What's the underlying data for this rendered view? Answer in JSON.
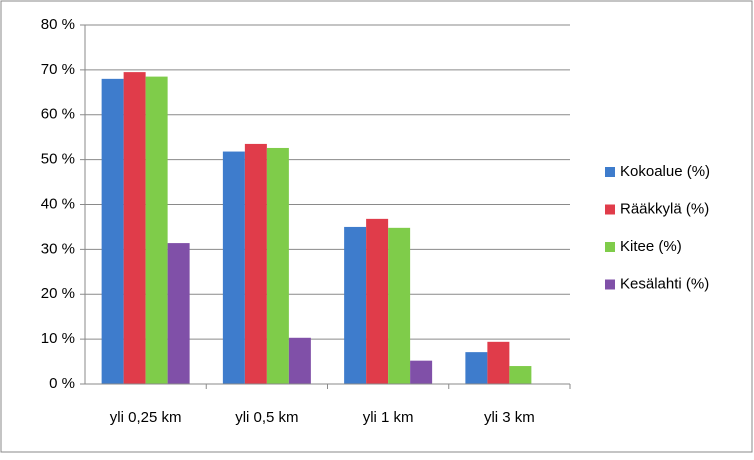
{
  "chart_data": {
    "type": "bar",
    "categories": [
      "yli 0,25 km",
      "yli 0,5 km",
      "yli 1 km",
      "yli 3 km"
    ],
    "series": [
      {
        "name": "Kokoalue (%)",
        "color": "#3e7ccc",
        "values": [
          68,
          51.8,
          35,
          7.1
        ]
      },
      {
        "name": "Rääkkylä (%)",
        "color": "#e03c4a",
        "values": [
          69.5,
          53.5,
          36.8,
          9.4
        ]
      },
      {
        "name": "Kitee (%)",
        "color": "#7fcc4a",
        "values": [
          68.5,
          52.6,
          34.8,
          4
        ]
      },
      {
        "name": "Kesälahti (%)",
        "color": "#8050a8",
        "values": [
          31.4,
          10.3,
          5.2,
          0
        ]
      }
    ],
    "ylim": [
      0,
      80
    ],
    "yticks": [
      {
        "value": 0,
        "label": "0 %"
      },
      {
        "value": 10,
        "label": "10 %"
      },
      {
        "value": 20,
        "label": "20 %"
      },
      {
        "value": 30,
        "label": "30 %"
      },
      {
        "value": 40,
        "label": "40 %"
      },
      {
        "value": 50,
        "label": "50 %"
      },
      {
        "value": 60,
        "label": "60 %"
      },
      {
        "value": 70,
        "label": "70 %"
      },
      {
        "value": 80,
        "label": "80 %"
      }
    ],
    "grid": true,
    "legend": "right"
  }
}
